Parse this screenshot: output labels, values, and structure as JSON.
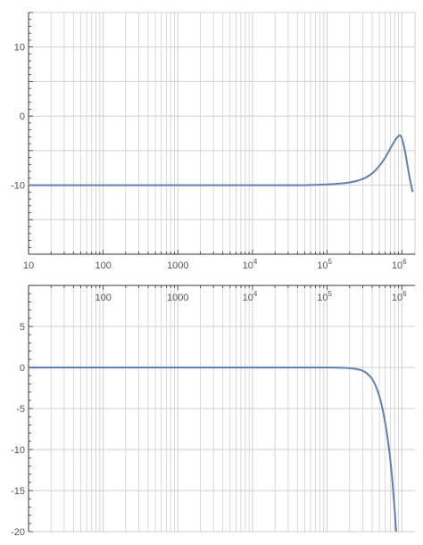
{
  "colors": {
    "curve": "#5e81b5",
    "grid": "#cfcfcf",
    "axis": "#333333",
    "tick_text": "#555555"
  },
  "chart_data": [
    {
      "type": "line",
      "title": "",
      "xlabel": "",
      "ylabel": "",
      "x_scale": "log",
      "grid": true,
      "xlim": [
        10,
        1500000
      ],
      "ylim": [
        -20,
        15
      ],
      "x_ticks": [
        {
          "value": 10,
          "label": "10"
        },
        {
          "value": 100,
          "label": "100"
        },
        {
          "value": 1000,
          "label": "1000"
        },
        {
          "value": 10000,
          "base": "10",
          "exp": "4"
        },
        {
          "value": 100000,
          "base": "10",
          "exp": "5"
        },
        {
          "value": 1000000,
          "base": "10",
          "exp": "6"
        }
      ],
      "y_ticks": [
        {
          "value": 10,
          "label": "10"
        },
        {
          "value": 0,
          "label": "0"
        },
        {
          "value": -10,
          "label": "-10"
        }
      ],
      "series": [
        {
          "x": [
            10,
            100,
            1000,
            10000,
            50000,
            100000,
            200000,
            300000,
            400000,
            500000,
            600000,
            700000,
            800000,
            900000,
            950000,
            1000000,
            1100000,
            1200000,
            1300000,
            1400000
          ],
          "y": [
            -10,
            -10,
            -10,
            -10,
            -10,
            -9.9,
            -9.6,
            -9.1,
            -8.3,
            -7.2,
            -6.0,
            -4.7,
            -3.6,
            -2.9,
            -2.8,
            -3.2,
            -5.0,
            -7.4,
            -9.4,
            -11.0
          ]
        }
      ]
    },
    {
      "type": "line",
      "title": "",
      "xlabel": "",
      "ylabel": "",
      "x_scale": "log",
      "grid": true,
      "xlim": [
        10,
        1500000
      ],
      "ylim": [
        -20,
        10
      ],
      "x_ticks": [
        {
          "value": 100,
          "label": "100"
        },
        {
          "value": 1000,
          "label": "1000"
        },
        {
          "value": 10000,
          "base": "10",
          "exp": "4"
        },
        {
          "value": 100000,
          "base": "10",
          "exp": "5"
        },
        {
          "value": 1000000,
          "base": "10",
          "exp": "6"
        }
      ],
      "y_ticks": [
        {
          "value": 5,
          "label": "5"
        },
        {
          "value": 0,
          "label": "0"
        },
        {
          "value": -5,
          "label": "-5"
        },
        {
          "value": -10,
          "label": "-10"
        },
        {
          "value": -15,
          "label": "-15"
        },
        {
          "value": -20,
          "label": "-20"
        }
      ],
      "series": [
        {
          "x": [
            10,
            100,
            1000,
            10000,
            100000,
            150000,
            200000,
            250000,
            300000,
            350000,
            400000,
            450000,
            500000,
            550000,
            600000,
            650000,
            700000,
            750000,
            800000,
            850000
          ],
          "y": [
            0,
            0,
            0,
            0,
            0,
            -0.03,
            -0.08,
            -0.2,
            -0.4,
            -0.8,
            -1.4,
            -2.3,
            -3.5,
            -5.0,
            -6.8,
            -8.8,
            -11.2,
            -14.0,
            -17.2,
            -20.8
          ]
        }
      ]
    }
  ]
}
